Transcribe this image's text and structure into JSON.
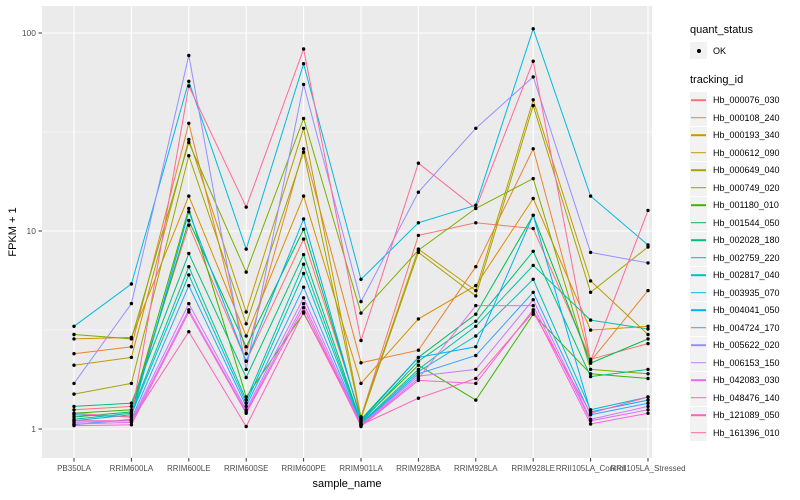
{
  "figure": {
    "background": "#FFFFFF",
    "panel_bg": "#EBEBEB",
    "grid_color": "#FFFFFF",
    "axis_text_color": "#4D4D4D",
    "tick_color": "#333333",
    "point_color": "#000000",
    "legend_key_bg": "#F2F2F2"
  },
  "chart_data": {
    "type": "line",
    "title": "",
    "xlabel": "sample_name",
    "ylabel": "FPKM + 1",
    "y_scale": "log10",
    "ylim": [
      1,
      110
    ],
    "grid": true,
    "legend_position": "right",
    "y_ticks": [
      1,
      10,
      100
    ],
    "y_minor_ticks": [
      3.162,
      31.62
    ],
    "categories": [
      "PB350LA",
      "RRIM600LA",
      "RRIM600LE",
      "RRIM600SE",
      "RRIM600PE",
      "RRIM901LA",
      "RRIM928BA",
      "RRIM928LA",
      "RRIM928LE",
      "RRII105LA_Control",
      "RRII105LA_Stressed"
    ],
    "legend": {
      "quant_status_title": "quant_status",
      "ok_label": "OK",
      "tracking_title": "tracking_id"
    },
    "series": [
      {
        "name": "Hb_000076_030",
        "color": "#F8766D",
        "values": [
          1.25,
          1.3,
          10.7,
          2.2,
          9.1,
          1.15,
          9.5,
          11.0,
          10.3,
          2.25,
          2.7
        ]
      },
      {
        "name": "Hb_000108_240",
        "color": "#EA8331",
        "values": [
          2.4,
          2.6,
          35,
          2.4,
          26,
          2.16,
          2.5,
          6.6,
          26,
          2.2,
          5.0
        ]
      },
      {
        "name": "Hb_000193_340",
        "color": "#D89000",
        "values": [
          2.85,
          2.9,
          15,
          2.95,
          15,
          1.7,
          3.6,
          5.3,
          14.6,
          3.16,
          3.3
        ]
      },
      {
        "name": "Hb_000612_090",
        "color": "#C09B00",
        "values": [
          2.1,
          2.3,
          29,
          3.9,
          33,
          1.15,
          8.1,
          5.0,
          46,
          5.6,
          3.0
        ]
      },
      {
        "name": "Hb_000649_040",
        "color": "#A3A500",
        "values": [
          1.5,
          1.7,
          24,
          3.4,
          25,
          1.13,
          7.8,
          4.7,
          43,
          4.9,
          8.3
        ]
      },
      {
        "name": "Hb_000749_020",
        "color": "#7CAE00",
        "values": [
          3.0,
          2.85,
          28,
          6.2,
          37,
          3.85,
          8.0,
          13.0,
          18.4,
          2.0,
          1.9
        ]
      },
      {
        "name": "Hb_001180_010",
        "color": "#39B600",
        "values": [
          1.2,
          1.25,
          13,
          1.45,
          3.85,
          1.1,
          2.1,
          1.4,
          3.8,
          1.9,
          1.8
        ]
      },
      {
        "name": "Hb_001544_050",
        "color": "#00BB4E",
        "values": [
          1.15,
          1.22,
          11.3,
          2.6,
          10.2,
          1.12,
          2.3,
          3.8,
          12.0,
          2.15,
          2.85
        ]
      },
      {
        "name": "Hb_002028_180",
        "color": "#00BF7D",
        "values": [
          1.3,
          1.35,
          7.7,
          1.82,
          7.6,
          1.08,
          2.2,
          3.5,
          7.9,
          1.84,
          2.0
        ]
      },
      {
        "name": "Hb_002759_220",
        "color": "#00C1A3",
        "values": [
          1.12,
          1.2,
          6.6,
          1.4,
          6.8,
          1.07,
          2.0,
          3.3,
          6.7,
          3.55,
          3.2
        ]
      },
      {
        "name": "Hb_002817_040",
        "color": "#00BFC4",
        "values": [
          1.1,
          1.18,
          6.0,
          1.35,
          6.1,
          1.06,
          1.95,
          2.95,
          5.7,
          1.25,
          1.45
        ]
      },
      {
        "name": "Hb_003935_070",
        "color": "#00BAE0",
        "values": [
          3.3,
          5.4,
          57,
          8.1,
          70,
          5.7,
          11.0,
          13.5,
          105,
          15.0,
          8.5
        ]
      },
      {
        "name": "Hb_004041_050",
        "color": "#00B0F6",
        "values": [
          1.18,
          1.15,
          12.5,
          2.2,
          11.5,
          1.1,
          2.3,
          2.6,
          12.0,
          1.22,
          1.4
        ]
      },
      {
        "name": "Hb_004724_170",
        "color": "#35A2FF",
        "values": [
          1.05,
          1.12,
          5.3,
          1.3,
          5.2,
          1.05,
          1.9,
          2.35,
          4.9,
          1.18,
          1.35
        ]
      },
      {
        "name": "Hb_005622_020",
        "color": "#9590FF",
        "values": [
          1.7,
          4.3,
          77,
          2.0,
          55,
          4.4,
          15.7,
          33,
          60,
          7.8,
          6.9
        ]
      },
      {
        "name": "Hb_006153_150",
        "color": "#C77CFF",
        "values": [
          1.08,
          1.1,
          4.3,
          1.25,
          4.6,
          1.05,
          1.85,
          2.0,
          4.5,
          1.12,
          1.3
        ]
      },
      {
        "name": "Hb_042083_030",
        "color": "#E76BF3",
        "values": [
          1.06,
          1.08,
          4.0,
          1.22,
          4.3,
          1.04,
          1.8,
          4.2,
          4.2,
          1.1,
          1.25
        ]
      },
      {
        "name": "Hb_048476_140",
        "color": "#FA62DB",
        "values": [
          1.04,
          1.05,
          3.9,
          1.2,
          4.1,
          1.03,
          1.76,
          1.7,
          4.0,
          1.06,
          1.2
        ]
      },
      {
        "name": "Hb_121089_050",
        "color": "#FF62BC",
        "values": [
          1.1,
          1.1,
          3.1,
          1.03,
          3.9,
          1.05,
          1.43,
          1.8,
          3.9,
          1.2,
          1.45
        ]
      },
      {
        "name": "Hb_161396_010",
        "color": "#FF6A98",
        "values": [
          1.2,
          1.15,
          54,
          13.2,
          83,
          2.8,
          22,
          13.0,
          72,
          2.2,
          12.7
        ]
      }
    ]
  }
}
